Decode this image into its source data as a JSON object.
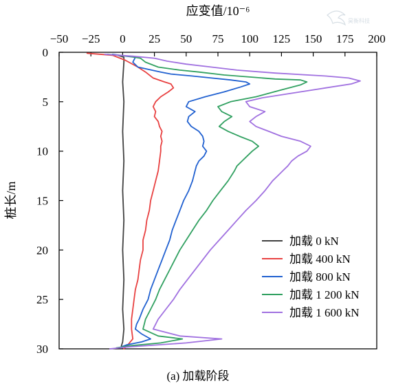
{
  "chart_data": {
    "type": "line",
    "orientation": "x-top, y-downward",
    "xlabel": "应变值/10⁻⁶",
    "ylabel": "桩长/m",
    "xlim": [
      -50,
      200
    ],
    "ylim": [
      0,
      30
    ],
    "y_inverted": true,
    "x_ticks": [
      -50,
      -25,
      0,
      25,
      50,
      75,
      100,
      125,
      150,
      175,
      200
    ],
    "x_tick_labels": [
      "−50",
      "−25",
      "0",
      "25",
      "50",
      "75",
      "100",
      "125",
      "150",
      "175",
      "200"
    ],
    "y_ticks": [
      0,
      5,
      10,
      15,
      20,
      25,
      30
    ],
    "y_tick_labels": [
      "0",
      "5",
      "10",
      "15",
      "20",
      "25",
      "30"
    ],
    "grid": false,
    "legend_position": "bottom-right",
    "caption": "(a)  加载阶段",
    "watermark": "昊衡科技",
    "series": [
      {
        "name": "加载 0 kN",
        "color": "#404040",
        "points": [
          [
            -4,
            0.3
          ],
          [
            1,
            0.5
          ],
          [
            1,
            1
          ],
          [
            0,
            3
          ],
          [
            1,
            5
          ],
          [
            0,
            8
          ],
          [
            1,
            11
          ],
          [
            0,
            14
          ],
          [
            1,
            17
          ],
          [
            0,
            20
          ],
          [
            1,
            23
          ],
          [
            0,
            26
          ],
          [
            1,
            28
          ],
          [
            0,
            29.3
          ],
          [
            -1,
            29.7
          ],
          [
            0,
            30
          ]
        ]
      },
      {
        "name": "加载 400 kN",
        "color": "#e84040",
        "points": [
          [
            -28,
            0.1
          ],
          [
            -8,
            0.3
          ],
          [
            2,
            0.8
          ],
          [
            12,
            1.5
          ],
          [
            18,
            2
          ],
          [
            24,
            2.6
          ],
          [
            33,
            3
          ],
          [
            38,
            3.2
          ],
          [
            40,
            3.6
          ],
          [
            36,
            4
          ],
          [
            30,
            4.5
          ],
          [
            26,
            5
          ],
          [
            24,
            5.5
          ],
          [
            26,
            6
          ],
          [
            25,
            6.5
          ],
          [
            28,
            7
          ],
          [
            29,
            7.5
          ],
          [
            31,
            8
          ],
          [
            30,
            8.5
          ],
          [
            31,
            9
          ],
          [
            30,
            9.5
          ],
          [
            30,
            10
          ],
          [
            29,
            11
          ],
          [
            28,
            12
          ],
          [
            26,
            13
          ],
          [
            24,
            14
          ],
          [
            22,
            15
          ],
          [
            21,
            16
          ],
          [
            19,
            17
          ],
          [
            18,
            18
          ],
          [
            16,
            19
          ],
          [
            16,
            20
          ],
          [
            14,
            21
          ],
          [
            13,
            22
          ],
          [
            12,
            23
          ],
          [
            10,
            24
          ],
          [
            9,
            25
          ],
          [
            8,
            26
          ],
          [
            7,
            27
          ],
          [
            7,
            28
          ],
          [
            8,
            29
          ],
          [
            4,
            29.6
          ],
          [
            1,
            30
          ]
        ]
      },
      {
        "name": "加载 800 kN",
        "color": "#2060d0",
        "points": [
          [
            -8,
            0.2
          ],
          [
            3,
            0.4
          ],
          [
            10,
            0.5
          ],
          [
            8,
            1
          ],
          [
            12,
            1.5
          ],
          [
            30,
            2
          ],
          [
            38,
            2.2
          ],
          [
            55,
            2.4
          ],
          [
            70,
            2.6
          ],
          [
            85,
            2.8
          ],
          [
            97,
            3.0
          ],
          [
            100,
            3.2
          ],
          [
            93,
            3.5
          ],
          [
            80,
            4
          ],
          [
            65,
            4.5
          ],
          [
            52,
            5
          ],
          [
            50,
            5.5
          ],
          [
            57,
            6
          ],
          [
            52,
            6.5
          ],
          [
            51,
            7
          ],
          [
            54,
            7.5
          ],
          [
            60,
            8
          ],
          [
            63,
            8.5
          ],
          [
            64,
            9
          ],
          [
            63,
            9.5
          ],
          [
            66,
            10
          ],
          [
            64,
            10.5
          ],
          [
            60,
            11
          ],
          [
            58,
            11.5
          ],
          [
            57,
            12
          ],
          [
            55,
            13
          ],
          [
            52,
            14
          ],
          [
            48,
            15
          ],
          [
            45,
            16
          ],
          [
            42,
            17
          ],
          [
            39,
            18
          ],
          [
            37,
            19
          ],
          [
            34,
            20
          ],
          [
            31,
            21
          ],
          [
            28,
            22
          ],
          [
            25,
            23
          ],
          [
            22,
            24
          ],
          [
            20,
            25
          ],
          [
            16,
            26
          ],
          [
            13,
            27
          ],
          [
            11,
            27.5
          ],
          [
            10,
            28
          ],
          [
            15,
            28.5
          ],
          [
            22,
            29
          ],
          [
            15,
            29.3
          ],
          [
            3,
            29.6
          ],
          [
            -3,
            29.9
          ]
        ]
      },
      {
        "name": "加载 1 200 kN",
        "color": "#30a060",
        "points": [
          [
            -12,
            0.2
          ],
          [
            5,
            0.4
          ],
          [
            14,
            0.6
          ],
          [
            18,
            1
          ],
          [
            28,
            1.5
          ],
          [
            45,
            1.8
          ],
          [
            60,
            2
          ],
          [
            80,
            2.3
          ],
          [
            100,
            2.5
          ],
          [
            120,
            2.7
          ],
          [
            140,
            2.8
          ],
          [
            145,
            3.0
          ],
          [
            140,
            3.3
          ],
          [
            125,
            3.8
          ],
          [
            105,
            4.5
          ],
          [
            85,
            5
          ],
          [
            75,
            5.5
          ],
          [
            78,
            6
          ],
          [
            86,
            6.5
          ],
          [
            80,
            7
          ],
          [
            76,
            7.5
          ],
          [
            83,
            8
          ],
          [
            92,
            8.5
          ],
          [
            102,
            9
          ],
          [
            107,
            9.5
          ],
          [
            102,
            10
          ],
          [
            98,
            10.5
          ],
          [
            94,
            11
          ],
          [
            90,
            11.5
          ],
          [
            88,
            12
          ],
          [
            83,
            13
          ],
          [
            77,
            14
          ],
          [
            71,
            15
          ],
          [
            66,
            16
          ],
          [
            60,
            17
          ],
          [
            55,
            18
          ],
          [
            50,
            19
          ],
          [
            45,
            20
          ],
          [
            41,
            21
          ],
          [
            37,
            22
          ],
          [
            33,
            23
          ],
          [
            29,
            24
          ],
          [
            26,
            25
          ],
          [
            22,
            26
          ],
          [
            18,
            27
          ],
          [
            16,
            28
          ],
          [
            28,
            28.7
          ],
          [
            47,
            29
          ],
          [
            30,
            29.4
          ],
          [
            5,
            29.7
          ],
          [
            -5,
            29.9
          ]
        ]
      },
      {
        "name": "加载 1 600 kN",
        "color": "#a070e0",
        "points": [
          [
            -14,
            0.2
          ],
          [
            8,
            0.4
          ],
          [
            25,
            0.6
          ],
          [
            35,
            0.9
          ],
          [
            50,
            1.2
          ],
          [
            70,
            1.5
          ],
          [
            90,
            1.8
          ],
          [
            120,
            2.1
          ],
          [
            160,
            2.4
          ],
          [
            178,
            2.6
          ],
          [
            187,
            2.9
          ],
          [
            180,
            3.2
          ],
          [
            160,
            3.6
          ],
          [
            140,
            4
          ],
          [
            110,
            4.6
          ],
          [
            97,
            5
          ],
          [
            100,
            5.5
          ],
          [
            112,
            6
          ],
          [
            105,
            6.5
          ],
          [
            100,
            7
          ],
          [
            105,
            7.5
          ],
          [
            115,
            8
          ],
          [
            125,
            8.5
          ],
          [
            140,
            9
          ],
          [
            148,
            9.5
          ],
          [
            145,
            10
          ],
          [
            138,
            10.5
          ],
          [
            133,
            11
          ],
          [
            130,
            11.5
          ],
          [
            126,
            12
          ],
          [
            122,
            12.5
          ],
          [
            118,
            13
          ],
          [
            112,
            14
          ],
          [
            105,
            15
          ],
          [
            97,
            16
          ],
          [
            90,
            17
          ],
          [
            83,
            18
          ],
          [
            76,
            19
          ],
          [
            69,
            20
          ],
          [
            63,
            21
          ],
          [
            57,
            22
          ],
          [
            51,
            23
          ],
          [
            45,
            24
          ],
          [
            40,
            25
          ],
          [
            34,
            26
          ],
          [
            28,
            27
          ],
          [
            24,
            28
          ],
          [
            45,
            28.7
          ],
          [
            78,
            29
          ],
          [
            50,
            29.4
          ],
          [
            5,
            29.8
          ],
          [
            -10,
            30
          ]
        ]
      }
    ]
  }
}
